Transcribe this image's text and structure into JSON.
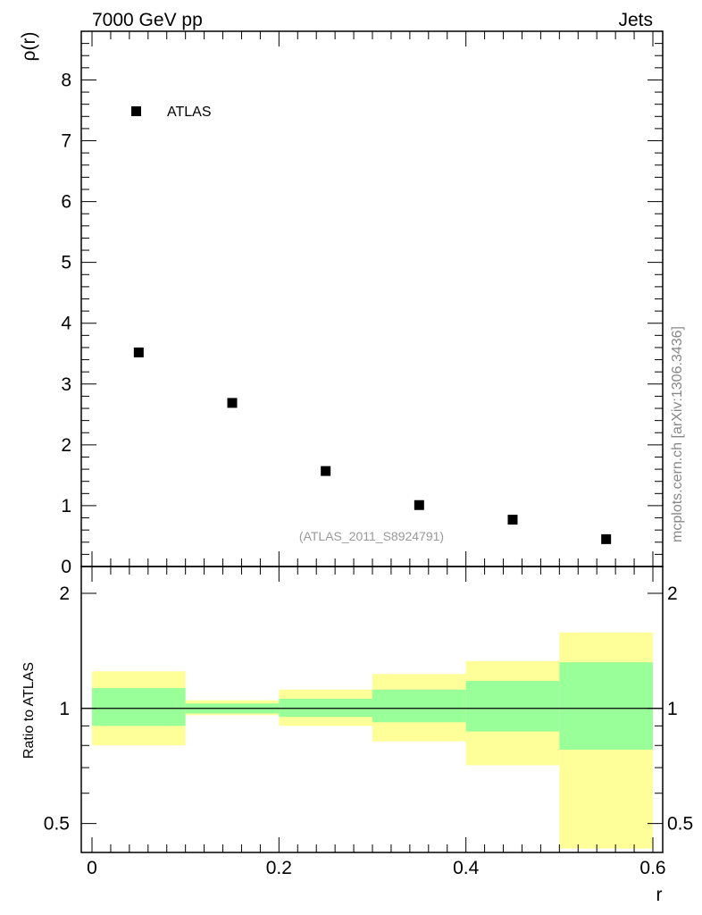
{
  "header": {
    "left": "7000 GeV pp",
    "right": "Jets"
  },
  "watermark": "mcplots.cern.ch [arXiv:1306.3436]",
  "colors": {
    "inner_band": "#99ff99",
    "outer_band": "#ffff99",
    "marker": "#000000",
    "ref_label": "#999999"
  },
  "chart_data": [
    {
      "type": "scatter",
      "title": "",
      "ylabel": "ρ(r)",
      "xlabel": "",
      "xlim": [
        0,
        0.6
      ],
      "ylim": [
        0,
        8.8
      ],
      "yticks": [
        0,
        1,
        2,
        3,
        4,
        5,
        6,
        7,
        8
      ],
      "legend": "ATLAS",
      "reference_label": "(ATLAS_2011_S8924791)",
      "series": [
        {
          "name": "ATLAS",
          "x": [
            0.05,
            0.15,
            0.25,
            0.35,
            0.45,
            0.55
          ],
          "y": [
            3.52,
            2.69,
            1.57,
            1.01,
            0.77,
            0.45
          ]
        }
      ]
    },
    {
      "type": "area",
      "ylabel": "Ratio to ATLAS",
      "xlabel": "r",
      "xlim": [
        0,
        0.6
      ],
      "ylim": [
        0.42,
        2.35
      ],
      "yticks": [
        0.5,
        1,
        2
      ],
      "ytick_labels": [
        "0.5",
        "1",
        "2"
      ],
      "xticks": [
        0,
        0.2,
        0.4,
        0.6
      ],
      "xtick_labels": [
        "0",
        "0.2",
        "0.4",
        "0.6"
      ],
      "bins": [
        [
          0,
          0.1
        ],
        [
          0.1,
          0.2
        ],
        [
          0.2,
          0.3
        ],
        [
          0.3,
          0.4
        ],
        [
          0.4,
          0.5
        ],
        [
          0.5,
          0.6
        ]
      ],
      "inner_band": [
        [
          0.9,
          1.13
        ],
        [
          0.97,
          1.03
        ],
        [
          0.95,
          1.06
        ],
        [
          0.92,
          1.12
        ],
        [
          0.87,
          1.18
        ],
        [
          0.78,
          1.32
        ]
      ],
      "outer_band": [
        [
          0.8,
          1.25
        ],
        [
          0.96,
          1.05
        ],
        [
          0.9,
          1.12
        ],
        [
          0.82,
          1.23
        ],
        [
          0.71,
          1.33
        ],
        [
          0.43,
          1.58
        ]
      ],
      "reference_line": 1
    }
  ]
}
